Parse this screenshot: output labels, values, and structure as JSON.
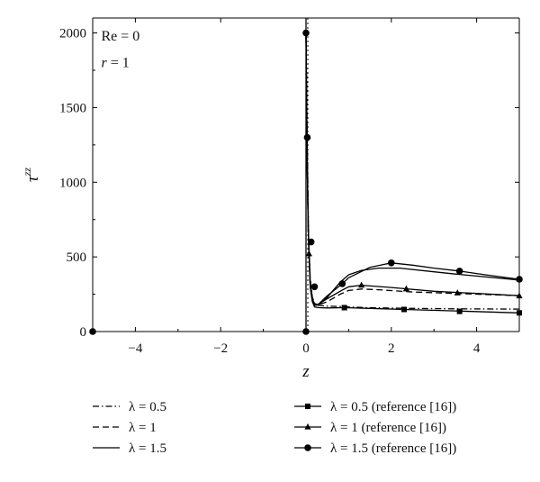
{
  "chart_data": {
    "type": "line",
    "xlabel": "z",
    "ylabel": "τ",
    "ylabel_superscript": "zz",
    "xlim": [
      -5,
      5
    ],
    "ylim": [
      0,
      2100
    ],
    "xticks": [
      -4,
      -2,
      0,
      2,
      4
    ],
    "xtick_labels": [
      "−4",
      "−2",
      "0",
      "2",
      "4"
    ],
    "yticks": [
      0,
      500,
      1000,
      1500,
      2000
    ],
    "ytick_labels": [
      "0",
      "500",
      "1000",
      "1500",
      "2000"
    ],
    "grid": false,
    "annotations": [
      {
        "prefix": "Re",
        "text": "Re = 0",
        "x": -4.8,
        "y": 1950
      },
      {
        "prefix": "r",
        "text": " = 1",
        "x": -4.8,
        "y": 1770
      }
    ],
    "series": [
      {
        "name": "λ = 0.5",
        "style": "dashdot",
        "marker": "none",
        "x": [
          0,
          0.03,
          0.06,
          0.1,
          0.15,
          0.2,
          0.3,
          0.5,
          0.8,
          1.0,
          1.5,
          2.5,
          3.5,
          5.0
        ],
        "y": [
          2000,
          1300,
          650,
          350,
          230,
          190,
          175,
          170,
          168,
          165,
          160,
          155,
          152,
          150
        ]
      },
      {
        "name": "λ = 1",
        "style": "dashed",
        "marker": "none",
        "x": [
          0,
          0.03,
          0.06,
          0.1,
          0.15,
          0.2,
          0.3,
          0.5,
          0.8,
          1.0,
          1.3,
          1.7,
          2.5,
          3.5,
          5.0
        ],
        "y": [
          2000,
          1200,
          650,
          350,
          220,
          185,
          180,
          200,
          250,
          275,
          285,
          280,
          265,
          255,
          240
        ]
      },
      {
        "name": "λ = 1.5",
        "style": "solid",
        "marker": "none",
        "x": [
          0,
          0.03,
          0.06,
          0.1,
          0.15,
          0.2,
          0.3,
          0.5,
          0.8,
          1.0,
          1.3,
          1.7,
          2.2,
          3.0,
          3.5,
          5.0
        ],
        "y": [
          2000,
          1100,
          600,
          330,
          210,
          175,
          180,
          230,
          330,
          380,
          410,
          425,
          425,
          400,
          385,
          345
        ]
      },
      {
        "name": "λ = 0.5 (reference [16])",
        "style": "solid",
        "marker": "square",
        "x": [
          0,
          0.02,
          0.05,
          0.08,
          0.1,
          0.15,
          0.2,
          0.3,
          0.5,
          0.9,
          1.5,
          2.3,
          3.5,
          5.0
        ],
        "y": [
          2000,
          1300,
          700,
          450,
          300,
          200,
          165,
          160,
          158,
          160,
          155,
          148,
          138,
          125
        ],
        "marker_x": [
          0.9,
          2.3,
          3.6,
          5.0
        ],
        "marker_y": [
          160,
          148,
          135,
          125
        ]
      },
      {
        "name": "λ = 1 (reference [16])",
        "style": "solid",
        "marker": "triangle",
        "x": [
          0,
          0.02,
          0.05,
          0.08,
          0.1,
          0.15,
          0.2,
          0.3,
          0.5,
          0.8,
          1.0,
          1.3,
          2.0,
          3.0,
          4.0,
          5.0
        ],
        "y": [
          2000,
          1300,
          700,
          450,
          300,
          200,
          175,
          185,
          220,
          270,
          300,
          310,
          295,
          270,
          255,
          240
        ],
        "marker_x": [
          0.07,
          1.3,
          2.35,
          3.55,
          5.0
        ],
        "marker_y": [
          520,
          310,
          285,
          258,
          238
        ]
      },
      {
        "name": "λ = 1.5 (reference [16])",
        "style": "solid",
        "marker": "circle",
        "x": [
          0,
          0.02,
          0.05,
          0.08,
          0.1,
          0.15,
          0.2,
          0.3,
          0.5,
          0.85,
          1.0,
          1.5,
          2.0,
          2.5,
          3.0,
          3.6,
          4.2,
          5.0
        ],
        "y": [
          2000,
          1300,
          700,
          450,
          300,
          210,
          175,
          185,
          240,
          320,
          360,
          430,
          460,
          445,
          425,
          405,
          380,
          350
        ],
        "marker_x": [
          0,
          0.03,
          0.12,
          0.2,
          0.85,
          2.0,
          3.6,
          5.0,
          -5.0,
          0
        ],
        "marker_y": [
          2000,
          1300,
          600,
          300,
          320,
          460,
          405,
          350,
          0,
          0
        ]
      }
    ],
    "legend": {
      "placement": "bottom",
      "left_items": [
        "λ = 0.5",
        "λ = 1",
        "λ = 1.5"
      ],
      "right_items": [
        "λ = 0.5 (reference [16])",
        "λ = 1 (reference [16])",
        "λ = 1.5 (reference [16])"
      ]
    }
  }
}
